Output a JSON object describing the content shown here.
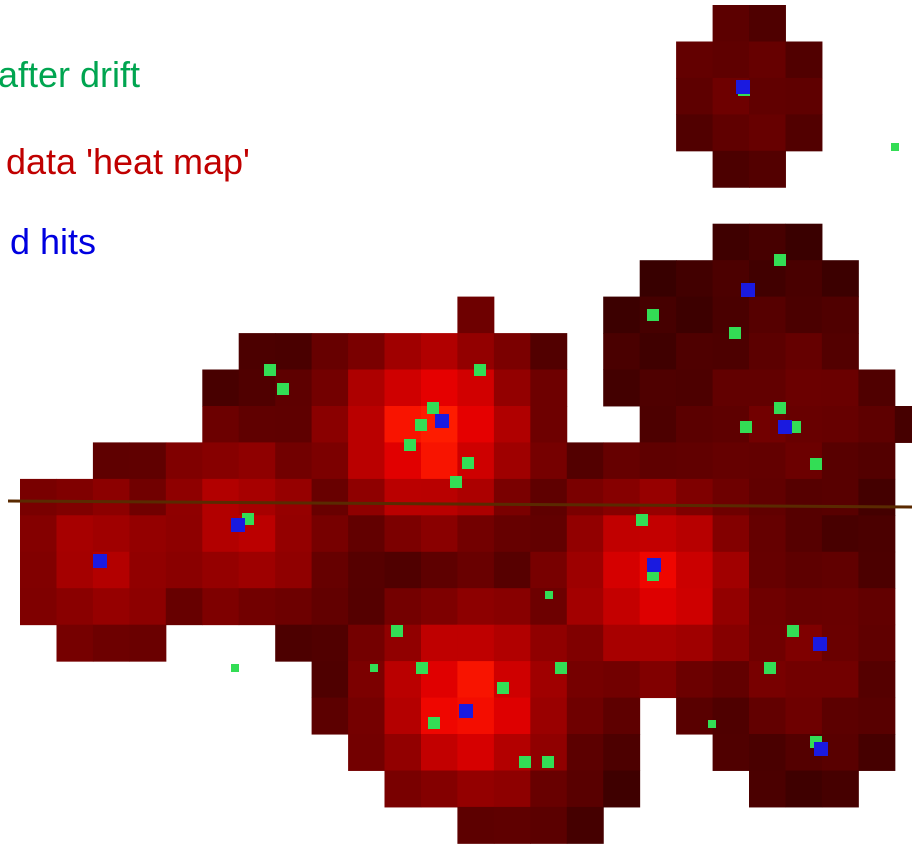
{
  "legend": {
    "items": [
      "after drift",
      "data 'heat map'",
      "d hits"
    ]
  }
}
